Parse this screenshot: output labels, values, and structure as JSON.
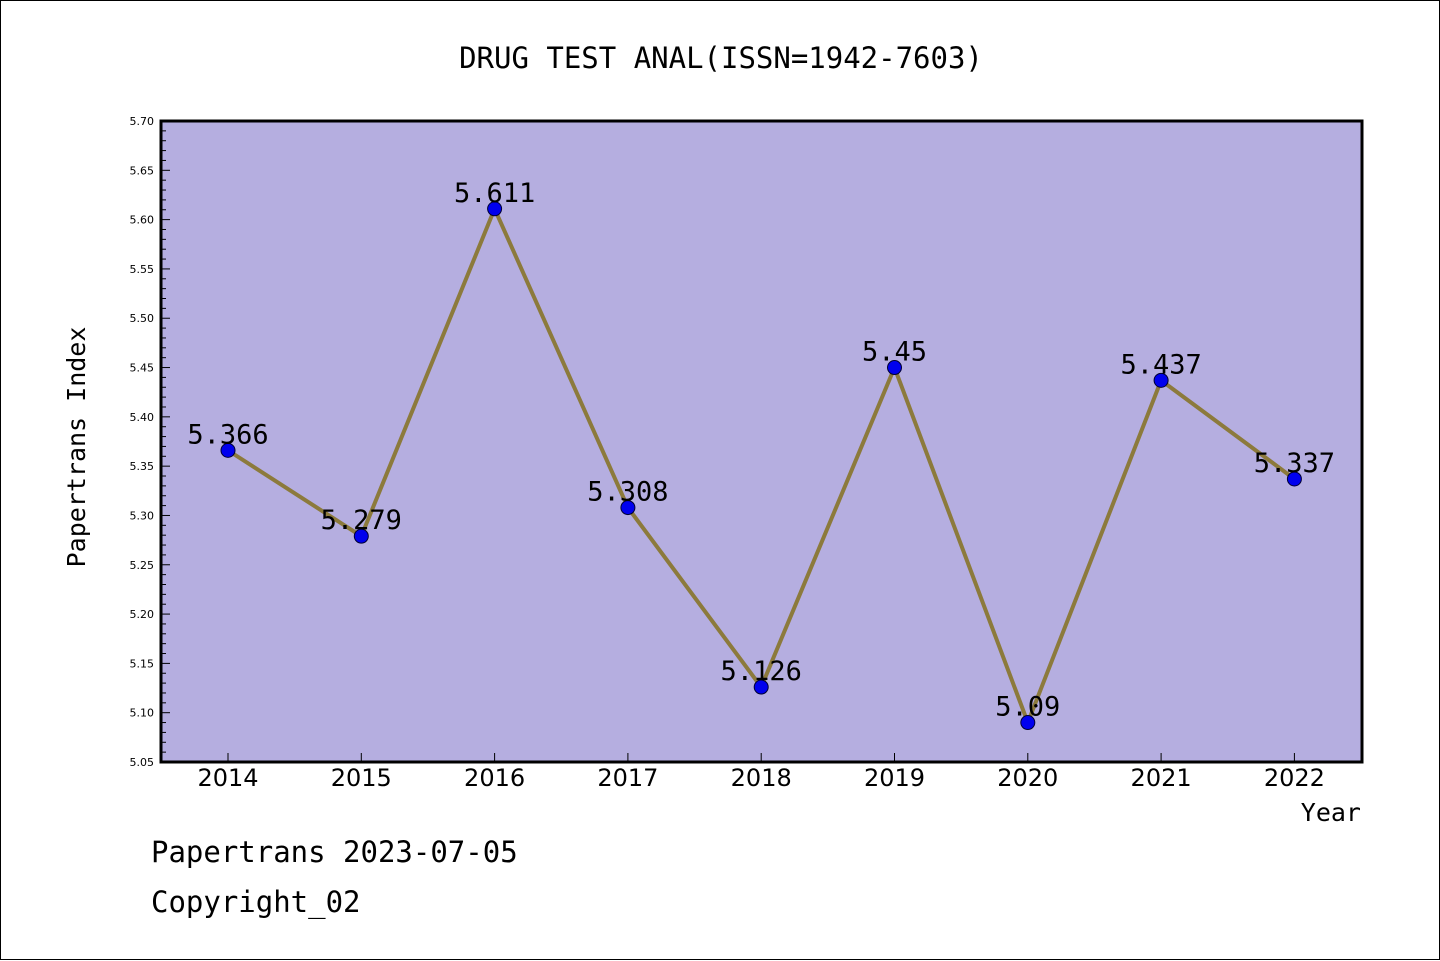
{
  "chart_data": {
    "type": "line",
    "title": "DRUG TEST ANAL(ISSN=1942-7603)",
    "xlabel": "Year",
    "ylabel": "Papertrans Index",
    "x": [
      "2014",
      "2015",
      "2016",
      "2017",
      "2018",
      "2019",
      "2020",
      "2021",
      "2022"
    ],
    "series": [
      {
        "values": [
          5.366,
          5.279,
          5.611,
          5.308,
          5.126,
          5.45,
          5.09,
          5.437,
          5.337
        ],
        "labels": [
          "5.366",
          "5.279",
          "5.611",
          "5.308",
          "5.126",
          "5.45",
          "5.09",
          "5.437",
          "5.337"
        ]
      }
    ],
    "ylim": [
      5.05,
      5.7
    ],
    "yticks": [
      "5.05",
      "5.10",
      "5.15",
      "5.20",
      "5.25",
      "5.30",
      "5.35",
      "5.40",
      "5.45",
      "5.50",
      "5.55",
      "5.60",
      "5.65",
      "5.70"
    ],
    "grid": false,
    "legend": "none",
    "colors": {
      "plot_background": "#b5aee0",
      "line": "#8c7a3c",
      "marker": "#0000ee"
    }
  },
  "footer": {
    "line1": "Papertrans 2023-07-05",
    "line2": "Copyright_02"
  }
}
